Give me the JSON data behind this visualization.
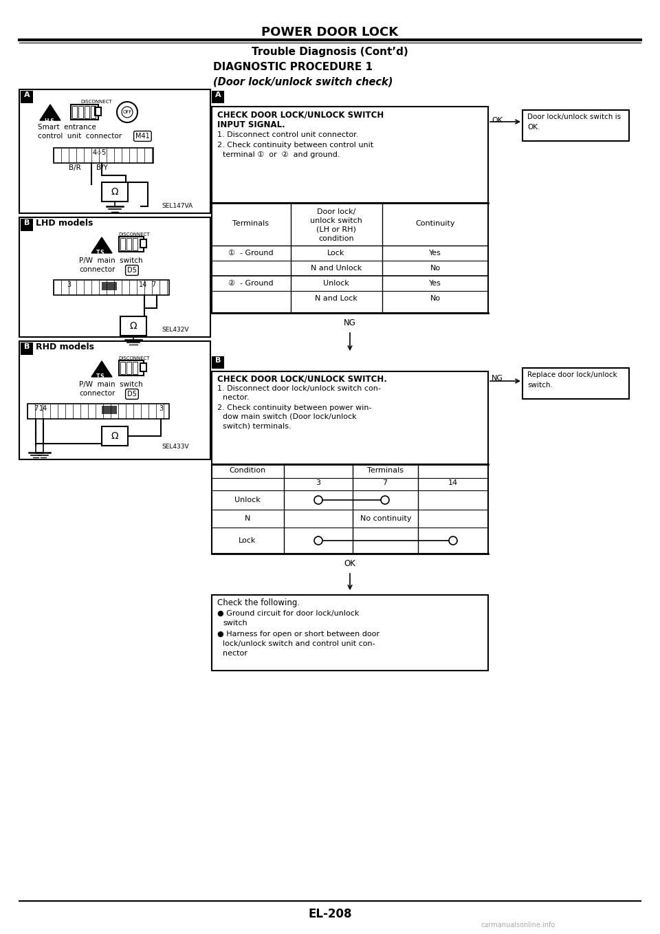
{
  "title": "POWER DOOR LOCK",
  "subtitle": "Trouble Diagnosis (Cont’d)",
  "diag_proc": "DIAGNOSTIC PROCEDURE 1",
  "subheading": "(Door lock/unlock switch check)",
  "page_num": "EL-208",
  "bg_color": "#ffffff",
  "text_color": "#000000"
}
